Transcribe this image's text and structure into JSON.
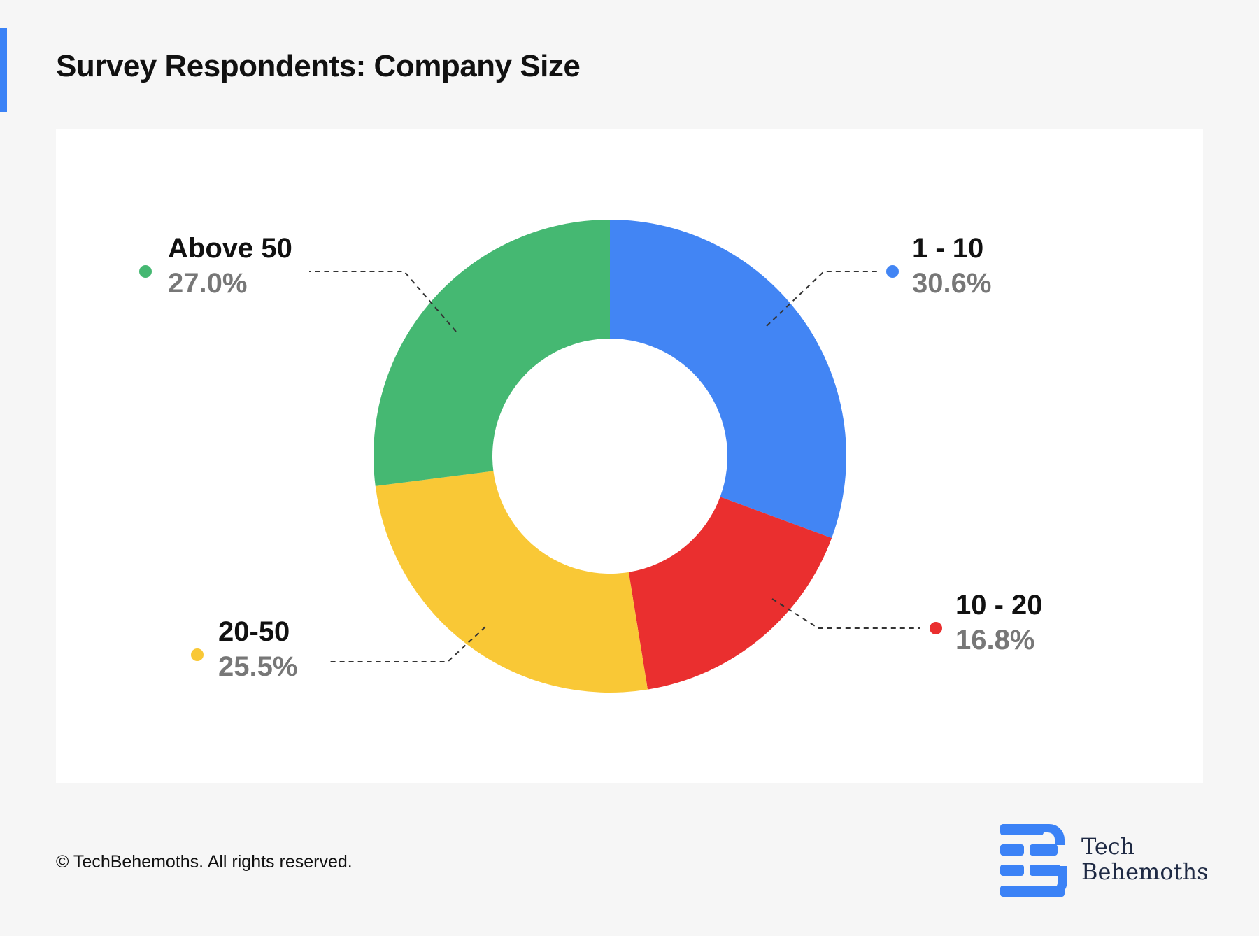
{
  "title": "Survey Respondents: Company Size",
  "footer": "© TechBehemoths. All rights reserved.",
  "brand": {
    "line1": "Tech",
    "line2": "Behemoths",
    "color": "#3b82f6"
  },
  "chart_data": {
    "type": "pie",
    "variant": "donut",
    "title": "Survey Respondents: Company Size",
    "slices": [
      {
        "label": "1 - 10",
        "value": 30.6,
        "display": "30.6%",
        "color": "#4285f4"
      },
      {
        "label": "10 - 20",
        "value": 16.8,
        "display": "16.8%",
        "color": "#ea2f2f"
      },
      {
        "label": "20-50",
        "value": 25.5,
        "display": "25.5%",
        "color": "#f9c836"
      },
      {
        "label": "Above 50",
        "value": 27.0,
        "display": "27.0%",
        "color": "#45b872"
      }
    ]
  }
}
